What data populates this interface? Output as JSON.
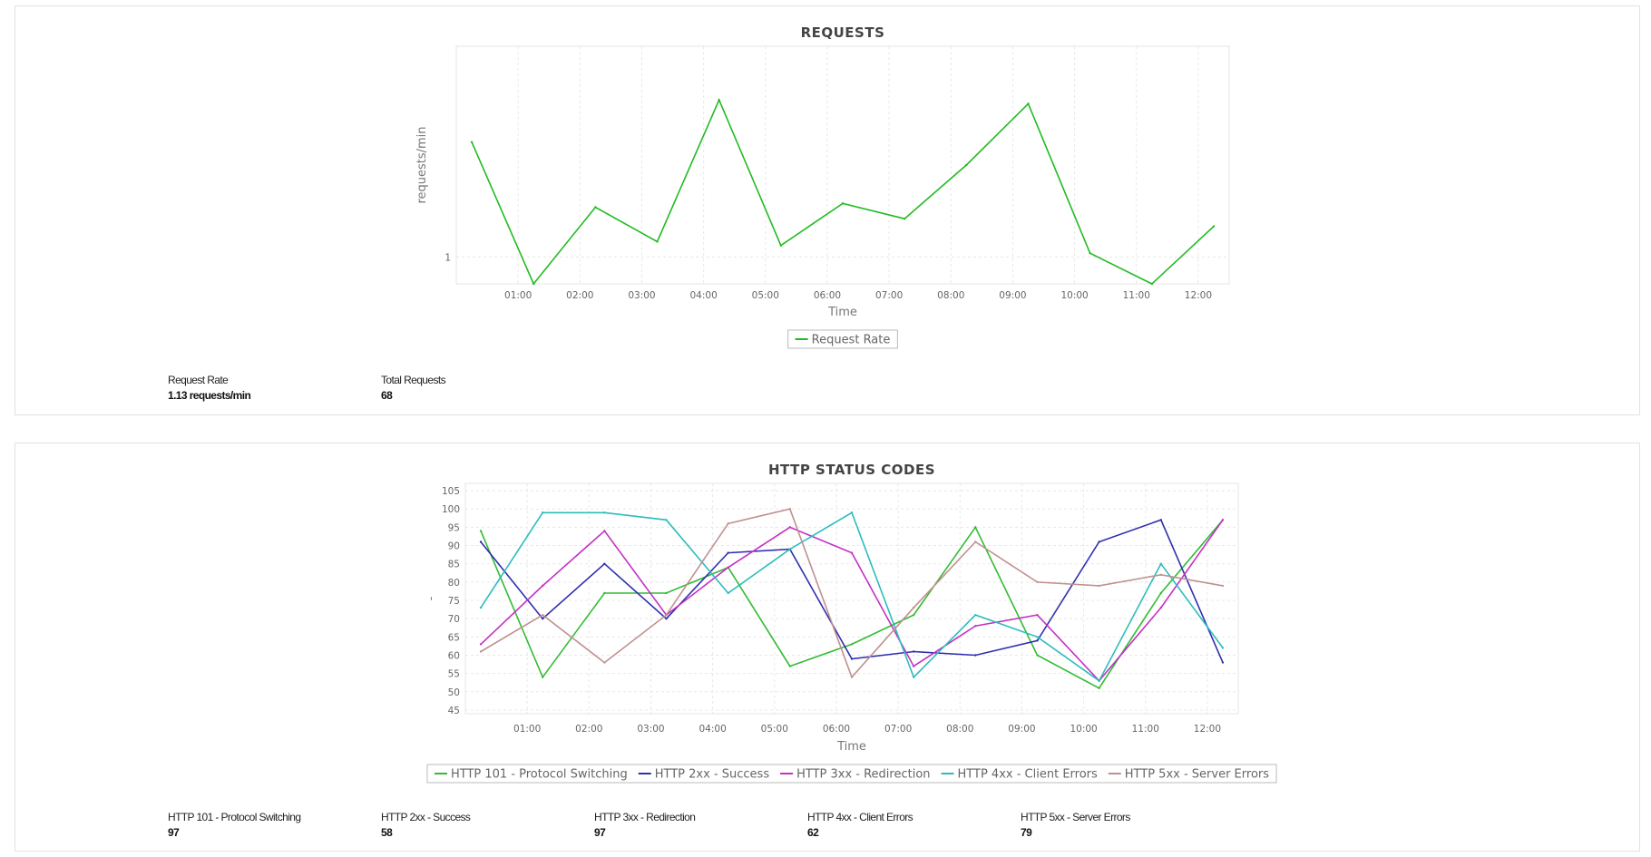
{
  "requests_panel": {
    "stats": [
      {
        "label": "Request Rate",
        "value": "1.13 requests/min"
      },
      {
        "label": "Total Requests",
        "value": "68"
      }
    ]
  },
  "status_panel": {
    "stats": [
      {
        "label": "HTTP 101 - Protocol Switching",
        "value": "97"
      },
      {
        "label": "HTTP 2xx - Success",
        "value": "58"
      },
      {
        "label": "HTTP 3xx - Redirection",
        "value": "97"
      },
      {
        "label": "HTTP 4xx - Client Errors",
        "value": "62"
      },
      {
        "label": "HTTP 5xx - Server Errors",
        "value": "79"
      }
    ]
  },
  "chart_data": [
    {
      "type": "line",
      "title": "REQUESTS",
      "xlabel": "Time",
      "ylabel": "requests/min",
      "x_ticks": [
        "01:00",
        "02:00",
        "03:00",
        "04:00",
        "05:00",
        "06:00",
        "07:00",
        "08:00",
        "09:00",
        "10:00",
        "11:00",
        "12:00"
      ],
      "y_ticks": [
        1
      ],
      "ylim": [
        0.93,
        1.55
      ],
      "x": [
        0.25,
        1.25,
        2.25,
        3.25,
        4.25,
        5.25,
        6.25,
        7.25,
        8.25,
        9.25,
        10.25,
        11.25,
        12.25
      ],
      "grid": true,
      "legend": "bottom-center",
      "series": [
        {
          "name": "Request Rate",
          "color": "#22bb22",
          "values": [
            1.3,
            0.93,
            1.13,
            1.04,
            1.41,
            1.03,
            1.14,
            1.1,
            1.24,
            1.4,
            1.01,
            0.93,
            1.08
          ]
        }
      ]
    },
    {
      "type": "line",
      "title": "HTTP STATUS CODES",
      "xlabel": "Time",
      "ylabel": "-",
      "x_ticks": [
        "01:00",
        "02:00",
        "03:00",
        "04:00",
        "05:00",
        "06:00",
        "07:00",
        "08:00",
        "09:00",
        "10:00",
        "11:00",
        "12:00"
      ],
      "y_ticks": [
        45,
        50,
        55,
        60,
        65,
        70,
        75,
        80,
        85,
        90,
        95,
        100,
        105
      ],
      "ylim": [
        44,
        107
      ],
      "x": [
        0.25,
        1.25,
        2.25,
        3.25,
        4.25,
        5.25,
        6.25,
        7.25,
        8.25,
        9.25,
        10.25,
        11.25,
        12.25
      ],
      "grid": true,
      "legend": "bottom-center",
      "series": [
        {
          "name": "HTTP 101 - Protocol Switching",
          "color": "#33bb33",
          "values": [
            94,
            54,
            77,
            77,
            84,
            57,
            63,
            71,
            95,
            60,
            51,
            77,
            97
          ]
        },
        {
          "name": "HTTP 2xx - Success",
          "color": "#2f2fb0",
          "values": [
            91,
            70,
            85,
            70,
            88,
            89,
            59,
            61,
            60,
            64,
            91,
            97,
            58
          ]
        },
        {
          "name": "HTTP 3xx - Redirection",
          "color": "#c431c4",
          "values": [
            63,
            79,
            94,
            71,
            84,
            95,
            88,
            57,
            68,
            71,
            53,
            73,
            97
          ]
        },
        {
          "name": "HTTP 4xx - Client Errors",
          "color": "#2dbcbc",
          "values": [
            73,
            99,
            99,
            97,
            77,
            89,
            99,
            54,
            71,
            65,
            53,
            85,
            62
          ]
        },
        {
          "name": "HTTP 5xx - Server Errors",
          "color": "#c09090",
          "values": [
            61,
            71,
            58,
            71,
            96,
            100,
            54,
            73,
            91,
            80,
            79,
            82,
            79
          ]
        }
      ]
    }
  ]
}
